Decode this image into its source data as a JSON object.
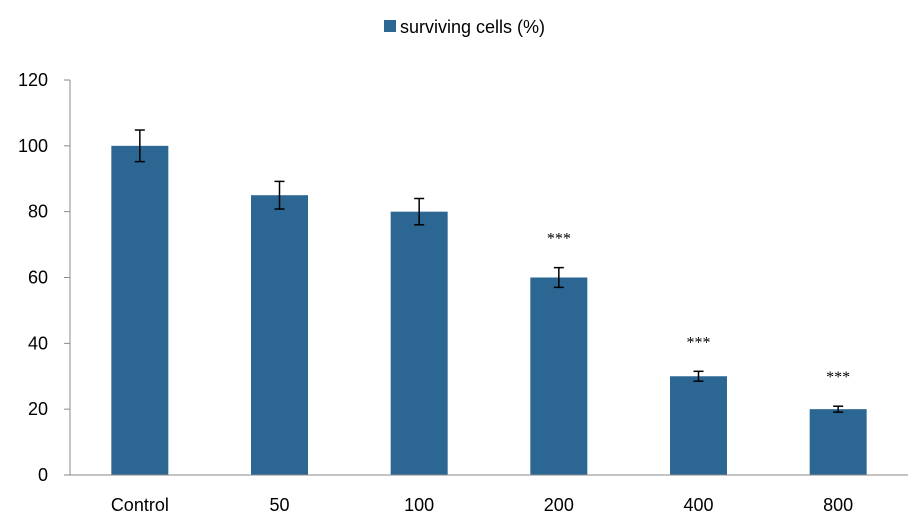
{
  "chart_data": {
    "type": "bar",
    "title": "",
    "xlabel": "",
    "ylabel": "",
    "categories": [
      "Control",
      "50",
      "100",
      "200",
      "400",
      "800"
    ],
    "series": [
      {
        "name": "surviving cells (%)",
        "values": [
          100,
          85,
          80,
          60,
          30,
          20
        ],
        "errors": [
          4.8,
          4.2,
          4.0,
          3.0,
          1.5,
          0.9
        ],
        "significance": [
          "",
          "",
          "",
          "***",
          "***",
          "***"
        ]
      }
    ],
    "ylim": [
      0,
      120
    ],
    "yticks": [
      0,
      20,
      40,
      60,
      80,
      100,
      120
    ],
    "ytick_labels": [
      "0",
      "20",
      "40",
      "60",
      "80",
      "100",
      "120"
    ],
    "grid": false,
    "legend": {
      "placement": "top-center"
    },
    "colors": {
      "bar": "#2B6792",
      "axis": "#898989",
      "error_bar": "#000000"
    }
  }
}
